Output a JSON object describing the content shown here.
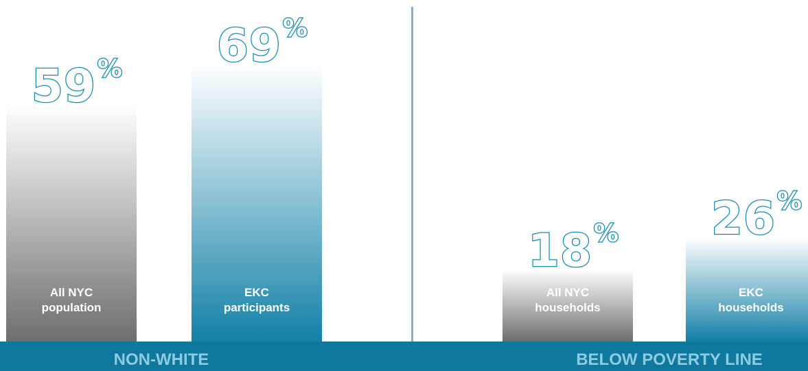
{
  "chart_data": {
    "type": "bar",
    "ylim": [
      0,
      100
    ],
    "groups": [
      {
        "name": "NON-WHITE",
        "bars": [
          {
            "label": "All NYC\npopulation",
            "value": 59,
            "display_num": "59",
            "display_unit": "%",
            "style": "gray"
          },
          {
            "label": "EKC\nparticipants",
            "value": 69,
            "display_num": "69",
            "display_unit": "%",
            "style": "blue"
          }
        ]
      },
      {
        "name": "BELOW POVERTY LINE",
        "bars": [
          {
            "label": "All NYC\nhouseholds",
            "value": 18,
            "display_num": "18",
            "display_unit": "%",
            "style": "gray"
          },
          {
            "label": "EKC\nhouseholds",
            "value": 26,
            "display_num": "26",
            "display_unit": "%",
            "style": "blue"
          }
        ]
      }
    ]
  },
  "colors": {
    "band": "#0E789E",
    "band_text": "#8DCBE0",
    "divider": "#8FA9CC",
    "value_outline": "#138AB0",
    "gray_top": "#FFFFFF",
    "gray_bottom": "#6E6E6E",
    "blue_top": "#FFFFFF",
    "blue_bottom": "#1380A6"
  }
}
